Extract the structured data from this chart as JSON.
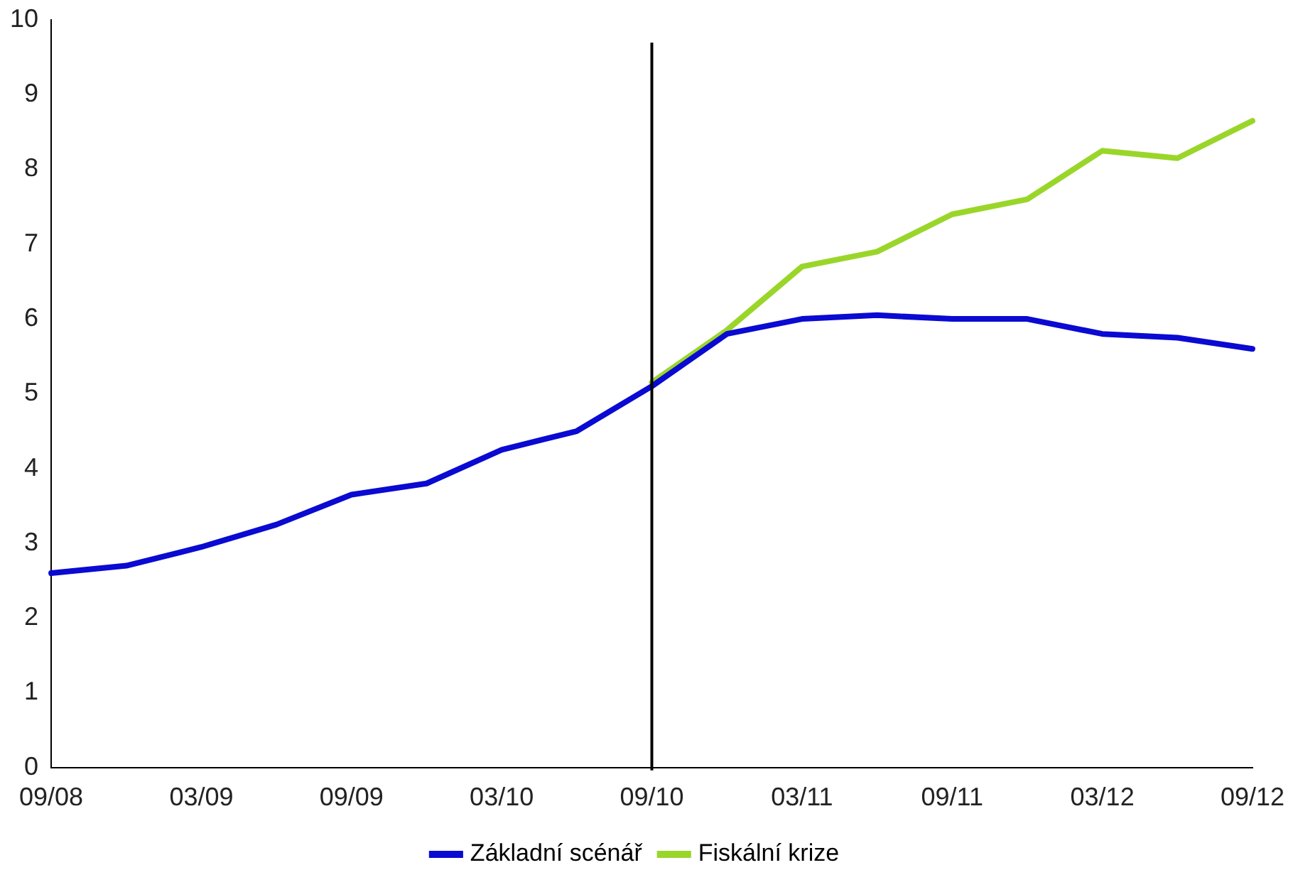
{
  "chart_data": {
    "type": "line",
    "categories": [
      "09/08",
      null,
      "03/09",
      null,
      "09/09",
      null,
      "03/10",
      null,
      "09/10",
      null,
      "03/11",
      null,
      "09/11",
      null,
      "03/12",
      null,
      "09/12"
    ],
    "series": [
      {
        "name": "Základní scénář",
        "color": "#0a0ad2",
        "values": [
          2.6,
          2.7,
          2.95,
          3.25,
          3.65,
          3.8,
          4.25,
          4.5,
          5.1,
          5.8,
          6.0,
          6.05,
          6.0,
          6.0,
          5.8,
          5.75,
          5.6
        ]
      },
      {
        "name": "Fiskální krize",
        "color": "#9ad62a",
        "values": [
          null,
          null,
          null,
          null,
          null,
          null,
          null,
          null,
          5.15,
          5.85,
          6.7,
          6.9,
          7.4,
          7.6,
          8.25,
          8.15,
          8.65
        ]
      }
    ],
    "ylim": [
      0,
      10
    ],
    "yticks": [
      0,
      1,
      2,
      3,
      4,
      5,
      6,
      7,
      8,
      9,
      10
    ],
    "ref_lines": [
      {
        "axis": "x",
        "value": "09/10",
        "color": "#000000"
      }
    ],
    "grid": false,
    "legend": "bottom",
    "marker": "none",
    "line_style": "solid"
  }
}
